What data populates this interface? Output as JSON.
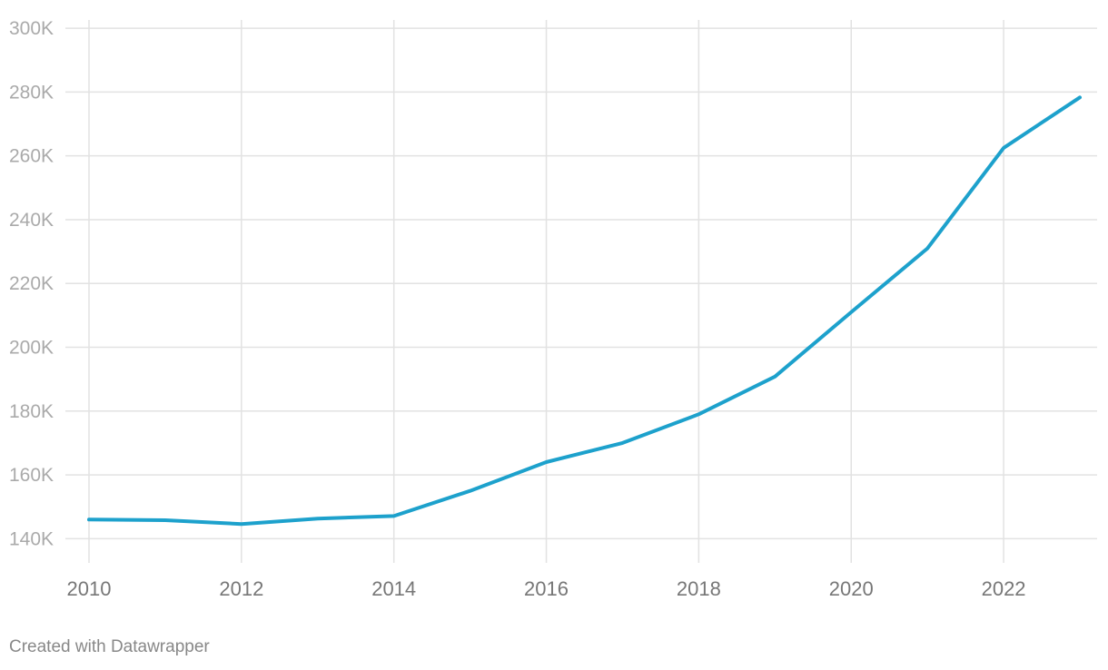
{
  "chart_data": {
    "type": "line",
    "title": "",
    "xlabel": "",
    "ylabel": "",
    "x": [
      2010,
      2011,
      2012,
      2013,
      2014,
      2015,
      2016,
      2017,
      2018,
      2019,
      2020,
      2021,
      2022,
      2023
    ],
    "series": [
      {
        "color": "#1da1cc",
        "values": [
          146000,
          145800,
          144600,
          146300,
          147100,
          155000,
          164000,
          170000,
          179000,
          190800,
          211000,
          231000,
          262500,
          278300
        ]
      }
    ],
    "xlim": [
      2010,
      2023
    ],
    "ylim": [
      131000,
      306000
    ],
    "y_ticks": [
      140000,
      160000,
      180000,
      200000,
      220000,
      240000,
      260000,
      280000,
      300000
    ],
    "y_tick_labels": [
      "140K",
      "160K",
      "180K",
      "200K",
      "220K",
      "240K",
      "260K",
      "280K",
      "300K"
    ],
    "x_ticks": [
      2010,
      2012,
      2014,
      2016,
      2018,
      2020,
      2022
    ],
    "x_tick_labels": [
      "2010",
      "2012",
      "2014",
      "2016",
      "2018",
      "2020",
      "2022"
    ],
    "grid": true,
    "legend": "none"
  },
  "footer": {
    "credit": "Created with Datawrapper"
  }
}
